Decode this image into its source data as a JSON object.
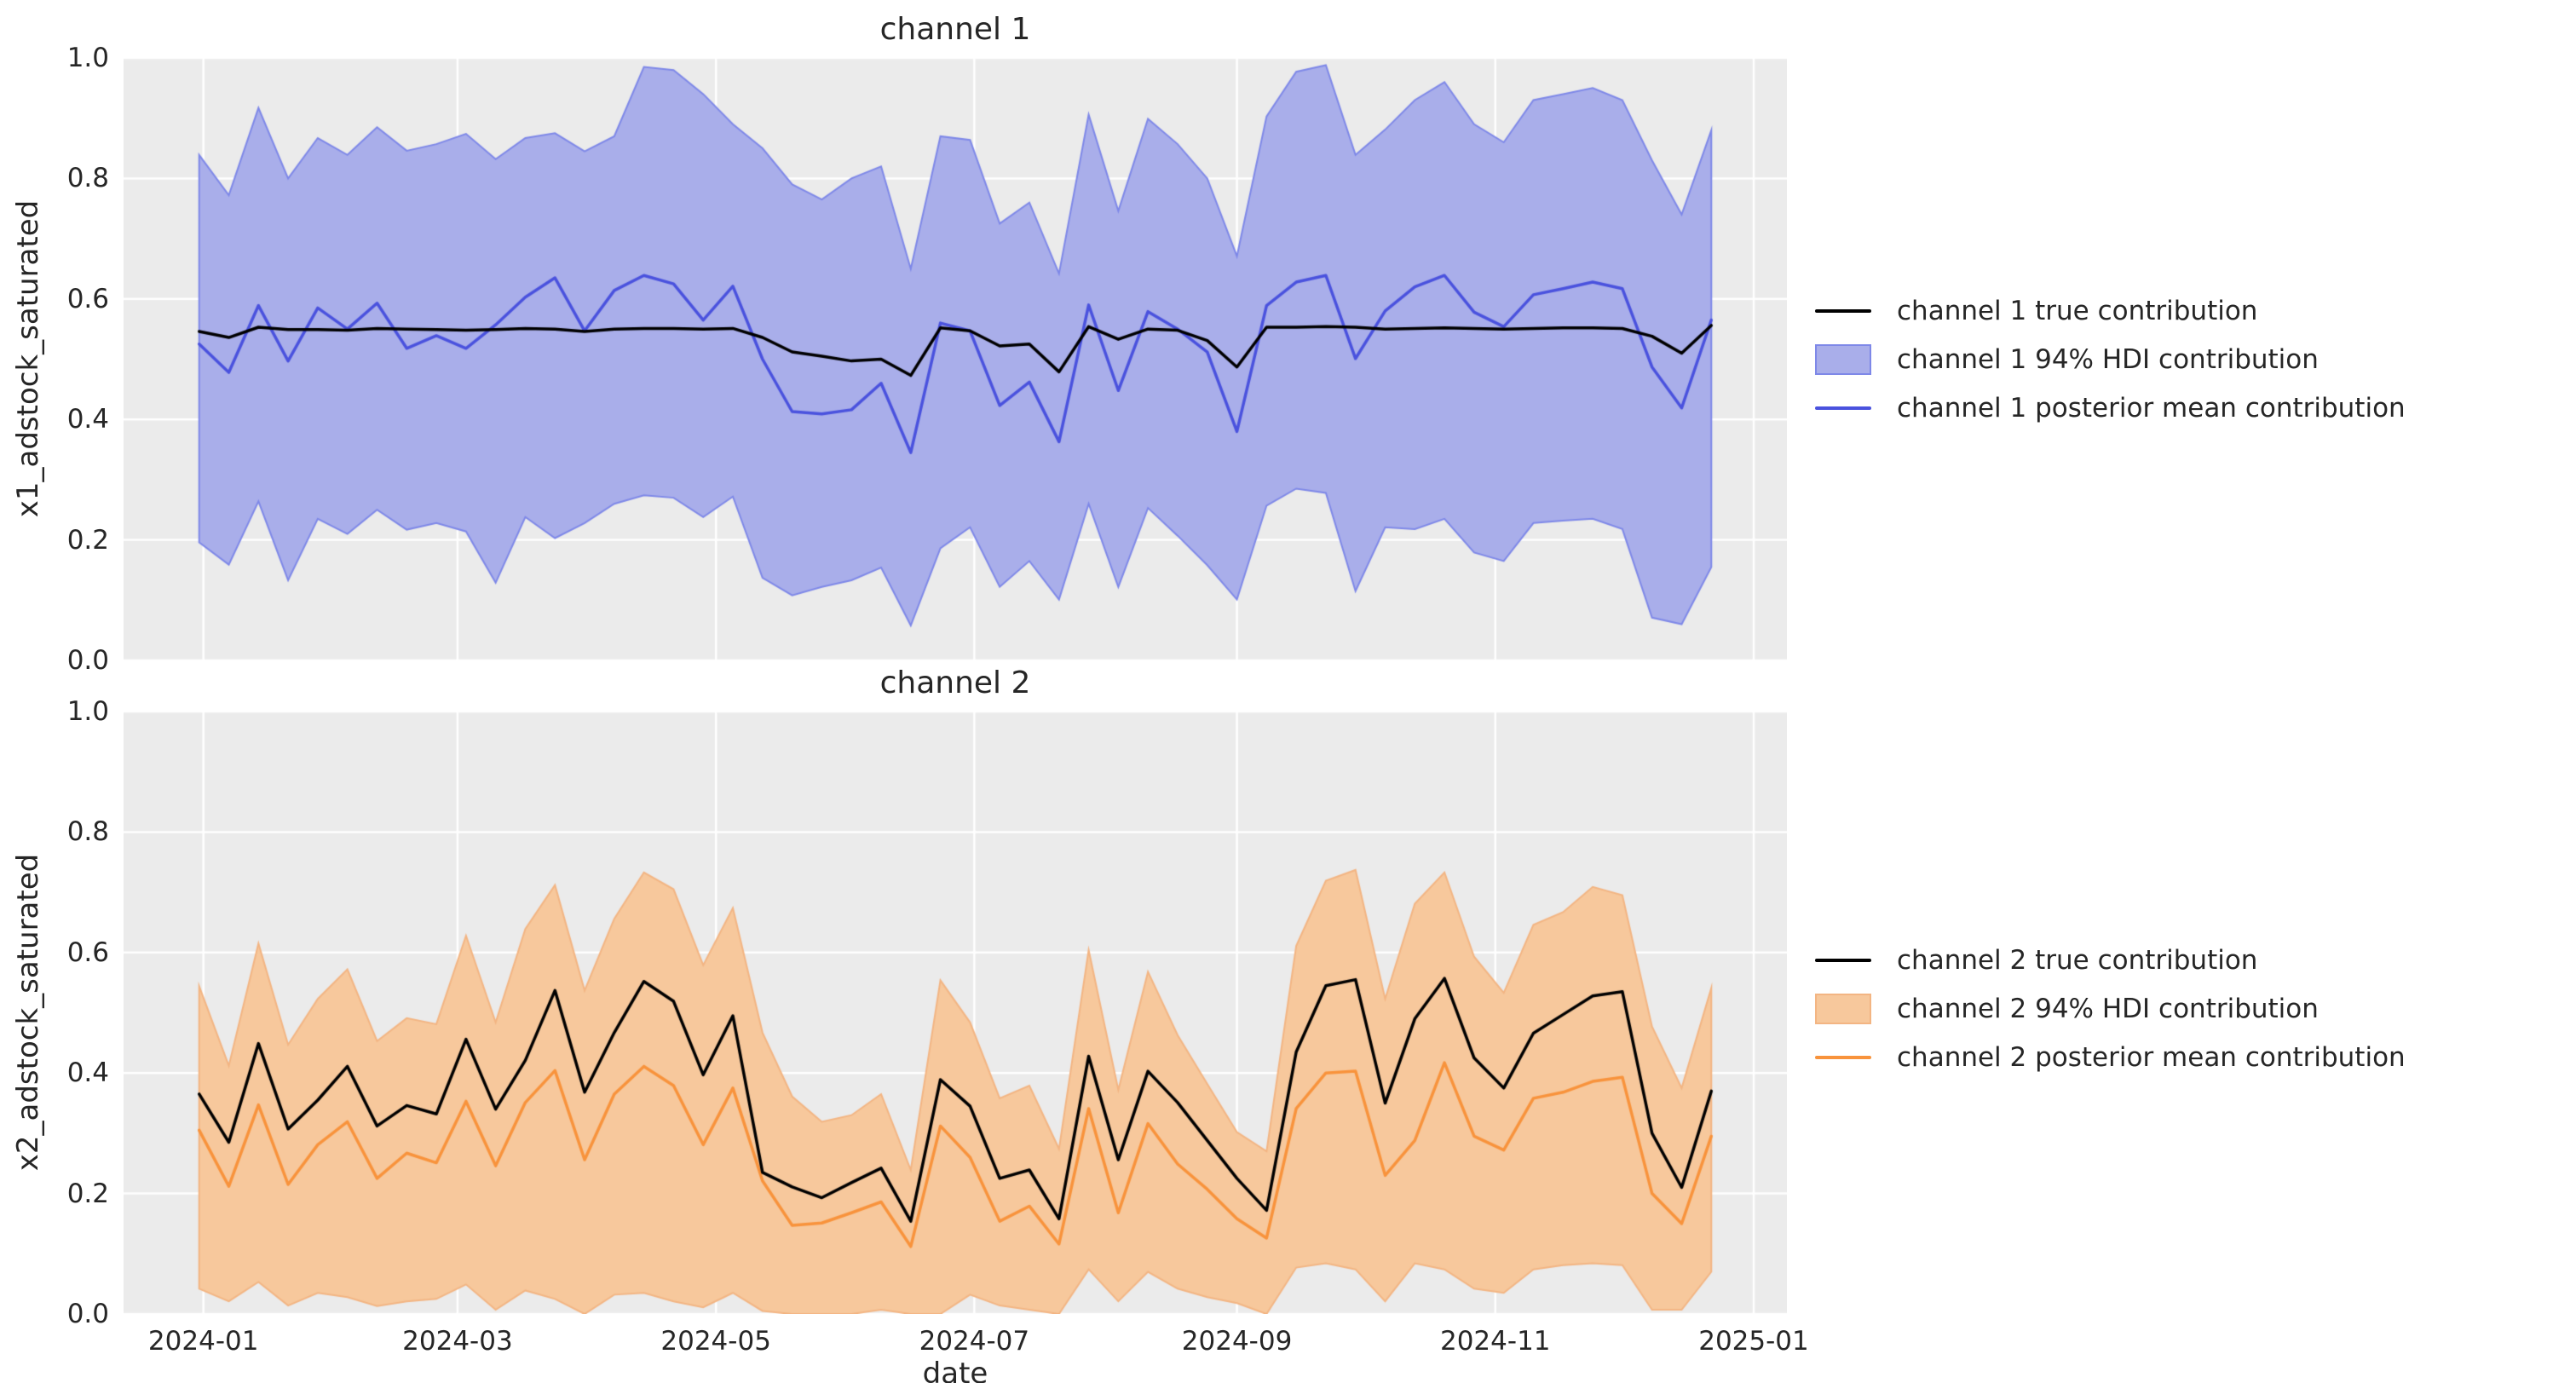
{
  "figure": {
    "background": "#ffffff",
    "plot_background": "#ebebeb",
    "grid_color": "#ffffff",
    "text_color": "#262626"
  },
  "xaxis": {
    "label": "date",
    "margin_weeks": 2.55,
    "ticks": [
      {
        "label": "2024-01",
        "week": 0.143
      },
      {
        "label": "2024-03",
        "week": 8.714
      },
      {
        "label": "2024-05",
        "week": 17.429
      },
      {
        "label": "2024-07",
        "week": 26.143
      },
      {
        "label": "2024-09",
        "week": 35.0
      },
      {
        "label": "2024-11",
        "week": 43.714
      },
      {
        "label": "2025-01",
        "week": 52.429
      }
    ]
  },
  "chart_data": [
    {
      "type": "line",
      "title": "channel 1",
      "ylabel": "x1_adstock_saturated",
      "ylim": [
        0.0,
        1.0
      ],
      "grid": true,
      "legend_position": "right",
      "yticks": [
        {
          "label": "0.0",
          "value": 0.0
        },
        {
          "label": "0.2",
          "value": 0.2
        },
        {
          "label": "0.4",
          "value": 0.4
        },
        {
          "label": "0.6",
          "value": 0.6
        },
        {
          "label": "0.8",
          "value": 0.8
        },
        {
          "label": "1.0",
          "value": 1.0
        }
      ],
      "colors": {
        "true_line": "#000000",
        "mean_line": "#4a52de",
        "band_fill": "#a9aeea",
        "band_edge": "#7e88e8"
      },
      "legend": [
        "channel 1 true contribution",
        "channel 1 94% HDI contribution",
        "channel 1 posterior mean contribution"
      ],
      "dates": [
        "2023-12-31",
        "2024-01-07",
        "2024-01-14",
        "2024-01-21",
        "2024-01-28",
        "2024-02-04",
        "2024-02-11",
        "2024-02-18",
        "2024-02-25",
        "2024-03-03",
        "2024-03-10",
        "2024-03-17",
        "2024-03-24",
        "2024-03-31",
        "2024-04-07",
        "2024-04-14",
        "2024-04-21",
        "2024-04-28",
        "2024-05-05",
        "2024-05-12",
        "2024-05-19",
        "2024-05-26",
        "2024-06-02",
        "2024-06-09",
        "2024-06-16",
        "2024-06-23",
        "2024-06-30",
        "2024-07-07",
        "2024-07-14",
        "2024-07-21",
        "2024-07-28",
        "2024-08-04",
        "2024-08-11",
        "2024-08-18",
        "2024-08-25",
        "2024-09-01",
        "2024-09-08",
        "2024-09-15",
        "2024-09-22",
        "2024-09-29",
        "2024-10-06",
        "2024-10-13",
        "2024-10-20",
        "2024-10-27",
        "2024-11-03",
        "2024-11-10",
        "2024-11-17",
        "2024-11-24",
        "2024-12-01",
        "2024-12-08",
        "2024-12-15",
        "2024-12-22"
      ],
      "series": [
        {
          "name": "channel 1 true contribution",
          "role": "true",
          "values": [
            0.546,
            0.536,
            0.553,
            0.549,
            0.549,
            0.548,
            0.551,
            0.55,
            0.549,
            0.548,
            0.549,
            0.551,
            0.55,
            0.546,
            0.55,
            0.551,
            0.551,
            0.55,
            0.551,
            0.536,
            0.512,
            0.505,
            0.497,
            0.5,
            0.473,
            0.552,
            0.547,
            0.522,
            0.525,
            0.479,
            0.554,
            0.533,
            0.55,
            0.548,
            0.531,
            0.487,
            0.553,
            0.553,
            0.554,
            0.553,
            0.55,
            0.551,
            0.552,
            0.551,
            0.55,
            0.551,
            0.552,
            0.552,
            0.551,
            0.538,
            0.51,
            0.556
          ]
        },
        {
          "name": "channel 1 posterior mean contribution",
          "role": "mean",
          "values": [
            0.525,
            0.478,
            0.589,
            0.497,
            0.585,
            0.55,
            0.593,
            0.518,
            0.539,
            0.518,
            0.557,
            0.603,
            0.635,
            0.547,
            0.614,
            0.639,
            0.625,
            0.565,
            0.621,
            0.5,
            0.413,
            0.409,
            0.416,
            0.46,
            0.345,
            0.56,
            0.547,
            0.423,
            0.462,
            0.363,
            0.59,
            0.448,
            0.579,
            0.55,
            0.512,
            0.38,
            0.589,
            0.628,
            0.639,
            0.501,
            0.58,
            0.62,
            0.639,
            0.578,
            0.554,
            0.607,
            0.617,
            0.628,
            0.617,
            0.487,
            0.419,
            0.565
          ]
        },
        {
          "name": "channel 1 94% HDI upper",
          "role": "hdi_upper",
          "values": [
            0.839,
            0.772,
            0.917,
            0.8,
            0.867,
            0.839,
            0.885,
            0.846,
            0.857,
            0.874,
            0.832,
            0.867,
            0.875,
            0.845,
            0.87,
            0.985,
            0.98,
            0.94,
            0.89,
            0.85,
            0.79,
            0.765,
            0.8,
            0.82,
            0.65,
            0.87,
            0.864,
            0.725,
            0.76,
            0.642,
            0.906,
            0.746,
            0.899,
            0.857,
            0.8,
            0.671,
            0.903,
            0.977,
            0.988,
            0.839,
            0.881,
            0.93,
            0.96,
            0.89,
            0.86,
            0.93,
            0.94,
            0.95,
            0.93,
            0.83,
            0.74,
            0.88
          ]
        },
        {
          "name": "channel 1 94% HDI lower",
          "role": "hdi_lower",
          "values": [
            0.196,
            0.159,
            0.264,
            0.133,
            0.235,
            0.21,
            0.25,
            0.217,
            0.228,
            0.214,
            0.129,
            0.238,
            0.203,
            0.228,
            0.26,
            0.274,
            0.27,
            0.238,
            0.272,
            0.137,
            0.108,
            0.122,
            0.133,
            0.154,
            0.058,
            0.186,
            0.221,
            0.122,
            0.165,
            0.101,
            0.26,
            0.122,
            0.253,
            0.207,
            0.158,
            0.101,
            0.257,
            0.285,
            0.278,
            0.115,
            0.221,
            0.218,
            0.235,
            0.179,
            0.165,
            0.228,
            0.232,
            0.235,
            0.218,
            0.071,
            0.06,
            0.155
          ]
        }
      ]
    },
    {
      "type": "line",
      "title": "channel 2",
      "ylabel": "x2_adstock_saturated",
      "ylim": [
        0.0,
        1.0
      ],
      "grid": true,
      "legend_position": "right",
      "yticks": [
        {
          "label": "0.0",
          "value": 0.0
        },
        {
          "label": "0.2",
          "value": 0.2
        },
        {
          "label": "0.4",
          "value": 0.4
        },
        {
          "label": "0.6",
          "value": 0.6
        },
        {
          "label": "0.8",
          "value": 0.8
        },
        {
          "label": "1.0",
          "value": 1.0
        }
      ],
      "colors": {
        "true_line": "#000000",
        "mean_line": "#f8933c",
        "band_fill": "#f7c89c",
        "band_edge": "#f3b583"
      },
      "legend": [
        "channel 2 true contribution",
        "channel 2 94% HDI contribution",
        "channel 2 posterior mean contribution"
      ],
      "dates": [
        "2023-12-31",
        "2024-01-07",
        "2024-01-14",
        "2024-01-21",
        "2024-01-28",
        "2024-02-04",
        "2024-02-11",
        "2024-02-18",
        "2024-02-25",
        "2024-03-03",
        "2024-03-10",
        "2024-03-17",
        "2024-03-24",
        "2024-03-31",
        "2024-04-07",
        "2024-04-14",
        "2024-04-21",
        "2024-04-28",
        "2024-05-05",
        "2024-05-12",
        "2024-05-19",
        "2024-05-26",
        "2024-06-02",
        "2024-06-09",
        "2024-06-16",
        "2024-06-23",
        "2024-06-30",
        "2024-07-07",
        "2024-07-14",
        "2024-07-21",
        "2024-07-28",
        "2024-08-04",
        "2024-08-11",
        "2024-08-18",
        "2024-08-25",
        "2024-09-01",
        "2024-09-08",
        "2024-09-15",
        "2024-09-22",
        "2024-09-29",
        "2024-10-06",
        "2024-10-13",
        "2024-10-20",
        "2024-10-27",
        "2024-11-03",
        "2024-11-10",
        "2024-11-17",
        "2024-11-24",
        "2024-12-01",
        "2024-12-08",
        "2024-12-15",
        "2024-12-22"
      ],
      "series": [
        {
          "name": "channel 2 true contribution",
          "role": "true",
          "values": [
            0.365,
            0.285,
            0.449,
            0.307,
            0.355,
            0.411,
            0.312,
            0.346,
            0.332,
            0.456,
            0.34,
            0.421,
            0.537,
            0.368,
            0.467,
            0.552,
            0.519,
            0.397,
            0.495,
            0.235,
            0.211,
            0.193,
            0.218,
            0.242,
            0.154,
            0.389,
            0.345,
            0.225,
            0.239,
            0.158,
            0.428,
            0.256,
            0.403,
            0.351,
            0.288,
            0.225,
            0.172,
            0.435,
            0.545,
            0.555,
            0.35,
            0.49,
            0.557,
            0.425,
            0.375,
            0.466,
            0.497,
            0.528,
            0.535,
            0.3,
            0.21,
            0.37
          ]
        },
        {
          "name": "channel 2 posterior mean contribution",
          "role": "mean",
          "values": [
            0.305,
            0.212,
            0.347,
            0.215,
            0.281,
            0.319,
            0.225,
            0.267,
            0.251,
            0.353,
            0.246,
            0.351,
            0.404,
            0.256,
            0.365,
            0.411,
            0.379,
            0.281,
            0.375,
            0.221,
            0.147,
            0.151,
            0.168,
            0.186,
            0.112,
            0.312,
            0.26,
            0.154,
            0.179,
            0.116,
            0.341,
            0.168,
            0.316,
            0.249,
            0.207,
            0.158,
            0.126,
            0.341,
            0.4,
            0.403,
            0.23,
            0.288,
            0.417,
            0.295,
            0.272,
            0.358,
            0.368,
            0.386,
            0.393,
            0.2,
            0.15,
            0.295
          ]
        },
        {
          "name": "channel 2 94% HDI upper",
          "role": "hdi_upper",
          "values": [
            0.544,
            0.412,
            0.615,
            0.447,
            0.523,
            0.572,
            0.453,
            0.491,
            0.481,
            0.628,
            0.484,
            0.639,
            0.712,
            0.537,
            0.656,
            0.733,
            0.705,
            0.579,
            0.674,
            0.467,
            0.361,
            0.319,
            0.33,
            0.365,
            0.239,
            0.554,
            0.484,
            0.358,
            0.379,
            0.274,
            0.604,
            0.372,
            0.568,
            0.463,
            0.382,
            0.302,
            0.27,
            0.611,
            0.719,
            0.737,
            0.523,
            0.681,
            0.733,
            0.593,
            0.533,
            0.646,
            0.667,
            0.709,
            0.695,
            0.477,
            0.375,
            0.541
          ]
        },
        {
          "name": "channel 2 94% HDI lower",
          "role": "hdi_lower",
          "values": [
            0.042,
            0.021,
            0.053,
            0.014,
            0.035,
            0.028,
            0.013,
            0.021,
            0.025,
            0.049,
            0.007,
            0.039,
            0.025,
            0.0,
            0.032,
            0.035,
            0.021,
            0.011,
            0.035,
            0.005,
            0.0,
            0.0,
            0.0,
            0.007,
            0.0,
            0.0,
            0.032,
            0.014,
            0.007,
            0.0,
            0.074,
            0.021,
            0.07,
            0.042,
            0.028,
            0.018,
            0.0,
            0.077,
            0.084,
            0.074,
            0.021,
            0.084,
            0.074,
            0.042,
            0.035,
            0.074,
            0.081,
            0.084,
            0.081,
            0.007,
            0.007,
            0.07
          ]
        }
      ]
    }
  ]
}
